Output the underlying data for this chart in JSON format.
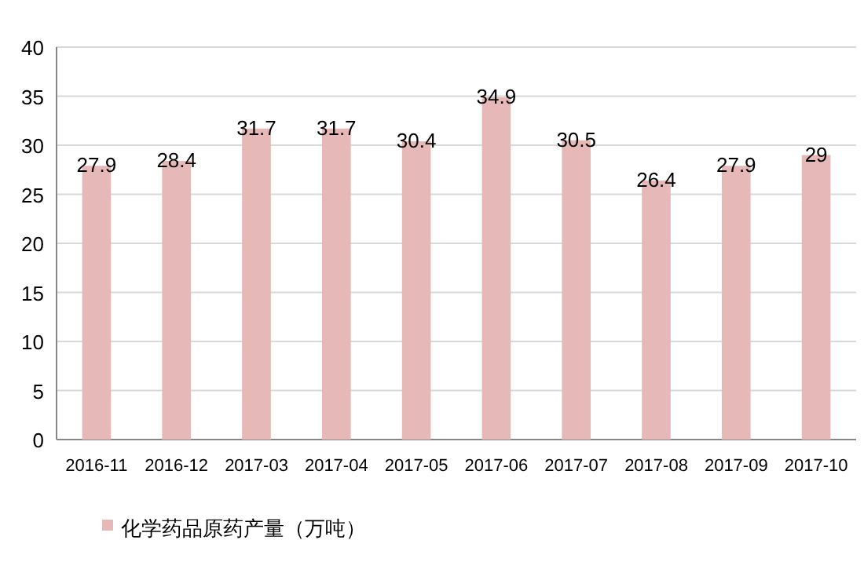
{
  "chart_data": {
    "type": "bar",
    "categories": [
      "2016-11",
      "2016-12",
      "2017-03",
      "2017-04",
      "2017-05",
      "2017-06",
      "2017-07",
      "2017-08",
      "2017-09",
      "2017-10"
    ],
    "series": [
      {
        "name": "化学药品原药产量（万吨）",
        "color": "#e6b9b8",
        "values": [
          27.9,
          28.4,
          31.7,
          31.7,
          30.4,
          34.9,
          30.5,
          26.4,
          27.9,
          29
        ]
      }
    ],
    "ylim": [
      0,
      40
    ],
    "yticks": [
      0,
      5,
      10,
      15,
      20,
      25,
      30,
      35,
      40
    ],
    "grid": "y",
    "legend": "bottom",
    "data_labels": true
  }
}
